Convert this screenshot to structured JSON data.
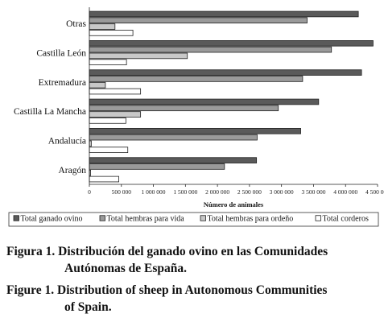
{
  "chart_data": {
    "type": "bar",
    "orientation": "horizontal",
    "categories": [
      "Otras",
      "Castilla León",
      "Extremadura",
      "Castilla La Mancha",
      "Andalucía",
      "Aragón"
    ],
    "series": [
      {
        "name": "Total ganado ovino",
        "color": "#5a5a5a",
        "values": [
          4200000,
          4430000,
          4250000,
          3580000,
          3300000,
          2610000
        ]
      },
      {
        "name": "Total hembras para vida",
        "color": "#9a9a9a",
        "values": [
          3400000,
          3780000,
          3330000,
          2950000,
          2620000,
          2110000
        ]
      },
      {
        "name": "Total hembras para ordeño",
        "color": "#c8c8c8",
        "values": [
          400000,
          1530000,
          250000,
          800000,
          30000,
          20000
        ]
      },
      {
        "name": "Total corderos",
        "color": "#ffffff",
        "values": [
          680000,
          580000,
          800000,
          570000,
          600000,
          460000
        ]
      }
    ],
    "xlabel": "Número de animales",
    "xlim": [
      0,
      4500000
    ],
    "xticks": [
      0,
      500000,
      1000000,
      1500000,
      2000000,
      2500000,
      3000000,
      3500000,
      4000000,
      4500000
    ],
    "xtick_labels": [
      "0",
      "500 000",
      "1 000 000",
      "1 500 000",
      "2 000 000",
      "2 500 000",
      "3 000 000",
      "3 500 000",
      "4 000 000",
      "4 500 000"
    ],
    "grid": false,
    "legend_position": "bottom"
  },
  "caption": {
    "es_label": "Figura 1.",
    "es_line1": "Distribución del ganado ovino en las Comunidades",
    "es_line2": "Autónomas de España.",
    "en_label": "Figure 1.",
    "en_line1": "Distribution of sheep in Autonomous Communities",
    "en_line2": "of Spain."
  }
}
